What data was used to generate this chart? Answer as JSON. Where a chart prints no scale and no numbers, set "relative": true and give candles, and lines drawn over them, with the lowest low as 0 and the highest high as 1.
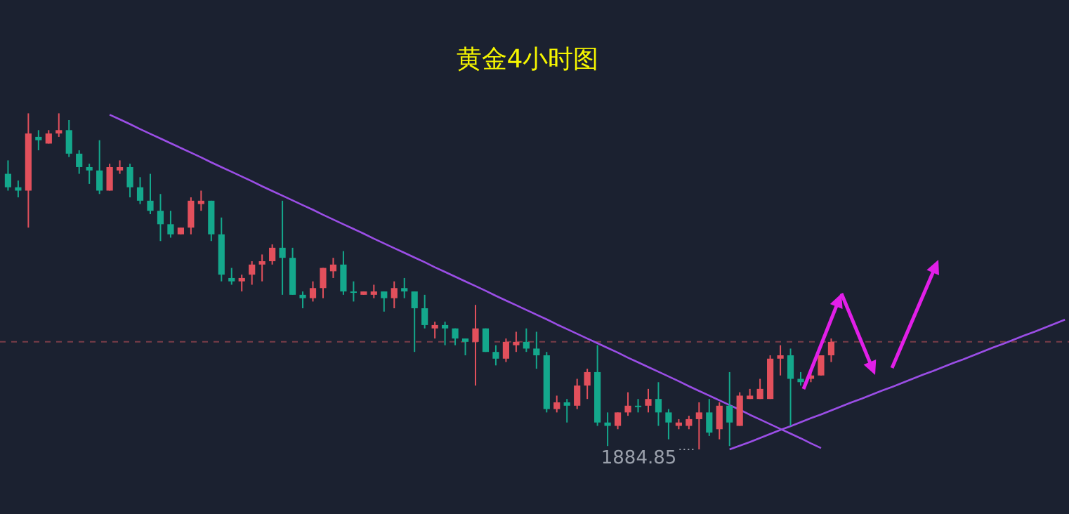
{
  "chart_data": {
    "type": "candlestick",
    "title": "黄金4小时图",
    "relative": true,
    "categories": [
      null,
      null,
      null,
      null,
      null,
      null,
      null,
      null,
      null,
      null,
      null,
      null,
      null,
      null,
      null,
      null,
      null,
      null,
      null,
      null,
      null,
      null,
      null,
      null,
      null,
      null,
      null,
      null,
      null,
      null,
      null,
      null,
      null,
      null,
      null,
      null,
      null,
      null,
      null,
      null,
      null,
      null,
      null,
      null,
      null,
      null,
      null,
      null,
      null,
      null,
      null,
      null,
      null,
      null,
      null,
      null,
      null,
      null,
      null,
      null,
      null,
      null,
      null,
      null,
      null,
      null,
      null,
      null,
      null,
      null,
      null,
      null,
      null,
      null,
      null,
      null,
      null,
      null,
      null,
      null,
      null,
      null,
      null,
      null,
      null,
      null,
      null,
      null,
      null,
      null,
      null,
      null,
      null,
      null,
      null,
      null,
      null,
      null,
      null,
      null,
      null,
      null,
      null,
      null,
      null
    ],
    "ohlc": [
      [
        0.82,
        0.86,
        0.77,
        0.78
      ],
      [
        0.78,
        0.8,
        0.75,
        0.77
      ],
      [
        0.77,
        1,
        0.66,
        0.94
      ],
      [
        0.93,
        0.95,
        0.89,
        0.92
      ],
      [
        0.91,
        0.95,
        0.91,
        0.94
      ],
      [
        0.94,
        1,
        0.93,
        0.95
      ],
      [
        0.95,
        0.98,
        0.87,
        0.88
      ],
      [
        0.88,
        0.89,
        0.82,
        0.84
      ],
      [
        0.84,
        0.85,
        0.79,
        0.83
      ],
      [
        0.83,
        0.92,
        0.76,
        0.77
      ],
      [
        0.77,
        0.85,
        0.77,
        0.84
      ],
      [
        0.83,
        0.86,
        0.82,
        0.84
      ],
      [
        0.84,
        0.85,
        0.75,
        0.78
      ],
      [
        0.78,
        0.81,
        0.73,
        0.74
      ],
      [
        0.74,
        0.82,
        0.7,
        0.71
      ],
      [
        0.71,
        0.76,
        0.62,
        0.67
      ],
      [
        0.67,
        0.71,
        0.63,
        0.64
      ],
      [
        0.64,
        0.66,
        0.64,
        0.66
      ],
      [
        0.66,
        0.75,
        0.64,
        0.74
      ],
      [
        0.73,
        0.77,
        0.71,
        0.74
      ],
      [
        0.74,
        0.74,
        0.62,
        0.64
      ],
      [
        0.64,
        0.69,
        0.5,
        0.52
      ],
      [
        0.51,
        0.54,
        0.49,
        0.5
      ],
      [
        0.5,
        0.52,
        0.47,
        0.51
      ],
      [
        0.52,
        0.56,
        0.49,
        0.55
      ],
      [
        0.55,
        0.58,
        0.5,
        0.56
      ],
      [
        0.56,
        0.61,
        0.55,
        0.6
      ],
      [
        0.6,
        0.74,
        0.46,
        0.57
      ],
      [
        0.57,
        0.6,
        0.46,
        0.46
      ],
      [
        0.46,
        0.47,
        0.42,
        0.45
      ],
      [
        0.45,
        0.5,
        0.44,
        0.48
      ],
      [
        0.48,
        0.54,
        0.45,
        0.54
      ],
      [
        0.53,
        0.57,
        0.51,
        0.55
      ],
      [
        0.55,
        0.59,
        0.46,
        0.47
      ],
      [
        0.47,
        0.5,
        0.44,
        0.47
      ],
      [
        0.46,
        0.47,
        0.46,
        0.47
      ],
      [
        0.46,
        0.49,
        0.45,
        0.47
      ],
      [
        0.47,
        0.47,
        0.41,
        0.45
      ],
      [
        0.45,
        0.5,
        0.42,
        0.48
      ],
      [
        0.48,
        0.51,
        0.45,
        0.47
      ],
      [
        0.47,
        0.47,
        0.29,
        0.42
      ],
      [
        0.42,
        0.46,
        0.36,
        0.37
      ],
      [
        0.36,
        0.38,
        0.33,
        0.37
      ],
      [
        0.37,
        0.38,
        0.31,
        0.36
      ],
      [
        0.36,
        0.36,
        0.31,
        0.33
      ],
      [
        0.33,
        0.33,
        0.28,
        0.32
      ],
      [
        0.32,
        0.43,
        0.19,
        0.36
      ],
      [
        0.36,
        0.36,
        0.29,
        0.29
      ],
      [
        0.29,
        0.31,
        0.25,
        0.27
      ],
      [
        0.27,
        0.33,
        0.26,
        0.32
      ],
      [
        0.31,
        0.35,
        0.29,
        0.32
      ],
      [
        0.32,
        0.36,
        0.29,
        0.3
      ],
      [
        0.3,
        0.35,
        0.24,
        0.28
      ],
      [
        0.28,
        0.29,
        0.11,
        0.12
      ],
      [
        0.12,
        0.16,
        0.11,
        0.14
      ],
      [
        0.14,
        0.15,
        0.08,
        0.13
      ],
      [
        0.13,
        0.21,
        0.12,
        0.19
      ],
      [
        0.19,
        0.24,
        0.15,
        0.23
      ],
      [
        0.23,
        0.31,
        0.07,
        0.08
      ],
      [
        0.08,
        0.11,
        0.01,
        0.07
      ],
      [
        0.07,
        0.11,
        0.06,
        0.11
      ],
      [
        0.11,
        0.17,
        0.1,
        0.13
      ],
      [
        0.13,
        0.15,
        0.11,
        0.13
      ],
      [
        0.13,
        0.18,
        0.11,
        0.15
      ],
      [
        0.15,
        0.2,
        0.07,
        0.11
      ],
      [
        0.11,
        0.12,
        0.03,
        0.08
      ],
      [
        0.07,
        0.09,
        0.06,
        0.08
      ],
      [
        0.07,
        0.1,
        0.06,
        0.09
      ],
      [
        0.09,
        0.14,
        0,
        0.11
      ],
      [
        0.11,
        0.15,
        0.04,
        0.05
      ],
      [
        0.06,
        0.14,
        0.03,
        0.13
      ],
      [
        0.13,
        0.23,
        0.01,
        0.08
      ],
      [
        0.07,
        0.17,
        0.07,
        0.16
      ],
      [
        0.15,
        0.18,
        0.15,
        0.16
      ],
      [
        0.15,
        0.21,
        0.15,
        0.18
      ],
      [
        0.15,
        0.28,
        0.15,
        0.27
      ],
      [
        0.27,
        0.31,
        0.22,
        0.28
      ],
      [
        0.28,
        0.3,
        0.07,
        0.21
      ],
      [
        0.21,
        0.23,
        0.19,
        0.2
      ],
      [
        0.21,
        0.23,
        0.2,
        0.22
      ],
      [
        0.22,
        0.28,
        0.22,
        0.28
      ],
      [
        0.28,
        0.33,
        0.26,
        0.32
      ],
      null,
      null,
      null,
      null,
      null,
      null,
      null,
      null,
      null,
      null,
      null,
      null,
      null,
      null,
      null,
      null,
      null,
      null,
      null,
      null,
      null,
      null,
      null
    ],
    "colors": [
      "#14a88c",
      "#14a88c",
      "#e2505c",
      "#14a88c",
      "#e2505c",
      "#e2505c",
      "#14a88c",
      "#14a88c",
      "#14a88c",
      "#14a88c",
      "#e2505c",
      "#e2505c",
      "#14a88c",
      "#14a88c",
      "#14a88c",
      "#14a88c",
      "#14a88c",
      "#e2505c",
      "#e2505c",
      "#e2505c",
      "#14a88c",
      "#14a88c",
      "#14a88c",
      "#e2505c",
      "#e2505c",
      "#e2505c",
      "#e2505c",
      "#14a88c",
      "#14a88c",
      "#14a88c",
      "#e2505c",
      "#e2505c",
      "#e2505c",
      "#14a88c",
      "#14a88c",
      "#e2505c",
      "#e2505c",
      "#14a88c",
      "#e2505c",
      "#14a88c",
      "#14a88c",
      "#14a88c",
      "#e2505c",
      "#14a88c",
      "#14a88c",
      "#14a88c",
      "#e2505c",
      "#14a88c",
      "#14a88c",
      "#e2505c",
      "#e2505c",
      "#14a88c",
      "#14a88c",
      "#14a88c",
      "#e2505c",
      "#14a88c",
      "#e2505c",
      "#e2505c",
      "#14a88c",
      "#14a88c",
      "#e2505c",
      "#e2505c",
      "#14a88c",
      "#e2505c",
      "#14a88c",
      "#14a88c",
      "#e2505c",
      "#e2505c",
      "#e2505c",
      "#14a88c",
      "#e2505c",
      "#14a88c",
      "#e2505c",
      "#e2505c",
      "#e2505c",
      "#e2505c",
      "#e2505c",
      "#14a88c",
      "#14a88c",
      "#e2505c",
      "#e2505c",
      "#e2505c",
      null,
      null,
      null,
      null,
      null,
      null,
      null,
      null,
      null,
      null,
      null,
      null,
      null,
      null,
      null,
      null,
      null,
      null,
      null,
      null,
      null,
      null,
      null
    ],
    "series": [
      {
        "type": "line",
        "color": "#9b4ee6",
        "values": [
          null,
          null,
          null,
          null,
          null,
          null,
          null,
          null,
          null,
          null,
          0.996,
          0.982,
          0.968,
          0.953,
          0.939,
          0.925,
          0.911,
          0.897,
          0.883,
          0.869,
          0.854,
          0.84,
          0.826,
          0.812,
          0.798,
          0.783,
          0.769,
          0.755,
          0.741,
          0.727,
          0.713,
          0.698,
          0.684,
          0.67,
          0.656,
          0.642,
          0.627,
          0.613,
          0.599,
          0.585,
          0.571,
          0.557,
          0.542,
          0.528,
          0.514,
          0.5,
          0.486,
          0.472,
          0.457,
          0.443,
          0.429,
          0.415,
          0.401,
          0.387,
          0.372,
          0.358,
          0.344,
          0.33,
          0.316,
          0.302,
          0.288,
          0.273,
          0.259,
          0.245,
          0.231,
          0.217,
          0.203,
          0.188,
          0.174,
          0.16,
          0.146,
          0.132,
          0.118,
          0.103,
          0.089,
          0.075,
          0.061,
          0.047,
          0.033,
          0.018,
          0.004,
          null,
          null,
          null,
          null,
          null,
          null,
          null,
          null,
          null,
          null,
          null,
          null,
          null,
          null,
          null,
          null,
          null,
          null,
          null,
          null,
          null,
          null,
          null,
          null
        ]
      },
      {
        "type": "line",
        "color": "#9b4ee6",
        "values": [
          null,
          null,
          null,
          null,
          null,
          null,
          null,
          null,
          null,
          null,
          null,
          null,
          null,
          null,
          null,
          null,
          null,
          null,
          null,
          null,
          null,
          null,
          null,
          null,
          null,
          null,
          null,
          null,
          null,
          null,
          null,
          null,
          null,
          null,
          null,
          null,
          null,
          null,
          null,
          null,
          null,
          null,
          null,
          null,
          null,
          null,
          null,
          null,
          null,
          null,
          null,
          null,
          null,
          null,
          null,
          null,
          null,
          null,
          null,
          null,
          null,
          null,
          null,
          null,
          null,
          null,
          null,
          null,
          null,
          null,
          null,
          0,
          0.011,
          0.022,
          0.034,
          0.046,
          0.058,
          0.069,
          0.081,
          0.093,
          0.104,
          0.116,
          0.128,
          0.14,
          0.151,
          0.163,
          0.175,
          0.186,
          0.198,
          0.21,
          0.222,
          0.233,
          0.245,
          0.257,
          0.268,
          0.28,
          0.292,
          0.304,
          0.315,
          0.327,
          0.339,
          0.35,
          0.362,
          0.374,
          0.386
        ]
      }
    ],
    "ref_lines": [
      {
        "axis": "y",
        "value": 0.32,
        "color": "#7a3c48",
        "line_style": "dashed"
      }
    ],
    "annotations": [
      "1884.85"
    ]
  }
}
